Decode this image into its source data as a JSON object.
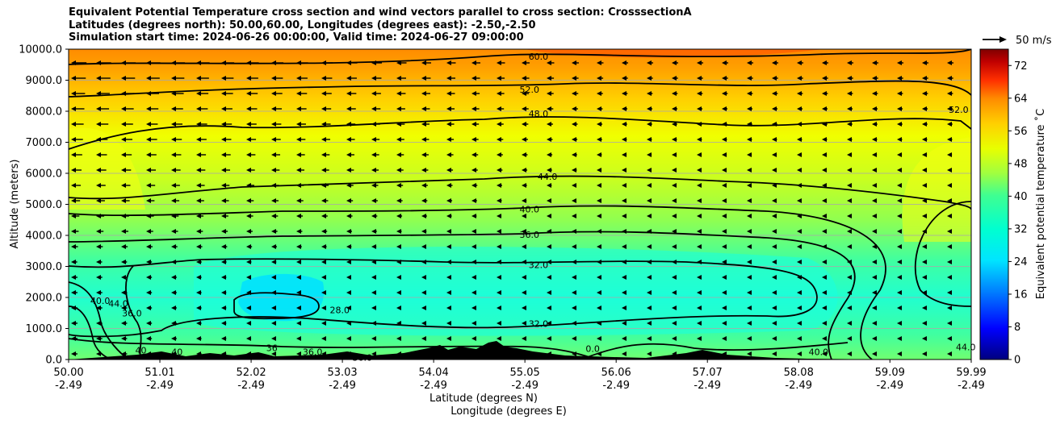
{
  "title_lines": [
    "Equivalent Potential Temperature cross section and wind vectors parallel to cross section: CrosssectionA",
    "Latitudes (degrees north): 50.00,60.00, Longitudes (degrees east): -2.50,-2.50",
    "Simulation start time: 2024-06-26 00:00:00, Valid time: 2024-06-27 09:00:00"
  ],
  "chart_data": {
    "type": "heatmap",
    "title": "Equivalent Potential Temperature cross section and wind vectors parallel to cross section: CrosssectionA",
    "ylabel": "Altitude (meters)",
    "xlabel": "Latitude (degrees N)",
    "xlabel2": "Longitude (degrees E)",
    "ylim": [
      0,
      10000
    ],
    "yticks": [
      "0.0",
      "1000.0",
      "2000.0",
      "3000.0",
      "4000.0",
      "5000.0",
      "6000.0",
      "7000.0",
      "8000.0",
      "9000.0",
      "10000.0"
    ],
    "ytick_values": [
      0,
      1000,
      2000,
      3000,
      4000,
      5000,
      6000,
      7000,
      8000,
      9000,
      10000
    ],
    "xlim": [
      50.0,
      59.99
    ],
    "xticks_lat": [
      "50.00",
      "51.01",
      "52.02",
      "53.03",
      "54.04",
      "55.05",
      "56.06",
      "57.07",
      "58.08",
      "59.09",
      "59.99"
    ],
    "xticks_lon": [
      "-2.49",
      "-2.49",
      "-2.49",
      "-2.49",
      "-2.49",
      "-2.49",
      "-2.49",
      "-2.49",
      "-2.49",
      "-2.49",
      "-2.49"
    ],
    "xtick_values": [
      50.0,
      51.01,
      52.02,
      53.03,
      54.04,
      55.05,
      56.06,
      57.07,
      58.08,
      59.09,
      59.99
    ],
    "colorbar": {
      "label": "Equivalent potential temperature ˚C",
      "range": [
        0,
        76
      ],
      "ticks": [
        "0",
        "8",
        "16",
        "24",
        "32",
        "40",
        "48",
        "56",
        "64",
        "72"
      ],
      "tick_values": [
        0,
        8,
        16,
        24,
        32,
        40,
        48,
        56,
        64,
        72
      ],
      "colors": [
        "#00007f",
        "#0000ff",
        "#0080ff",
        "#00e5ff",
        "#00ffd0",
        "#40ff90",
        "#a0ff40",
        "#e8ff00",
        "#ffd000",
        "#ff8c00",
        "#ff3000",
        "#c00000",
        "#7f0000"
      ]
    },
    "contour_labels": [
      {
        "text": "60.0",
        "x": 55.2,
        "y": 9760
      },
      {
        "text": "52.0",
        "x": 55.1,
        "y": 8700
      },
      {
        "text": "48.0",
        "x": 55.2,
        "y": 7920
      },
      {
        "text": "52.0",
        "x": 59.85,
        "y": 8050
      },
      {
        "text": "44.0",
        "x": 55.3,
        "y": 5900
      },
      {
        "text": "40.0",
        "x": 55.1,
        "y": 4850
      },
      {
        "text": "36.0",
        "x": 55.1,
        "y": 4030
      },
      {
        "text": "32.0",
        "x": 55.2,
        "y": 3050
      },
      {
        "text": "28.0",
        "x": 53.0,
        "y": 1600
      },
      {
        "text": "32.0",
        "x": 55.2,
        "y": 1150
      },
      {
        "text": "36.0",
        "x": 50.7,
        "y": 1500
      },
      {
        "text": "40.0",
        "x": 50.35,
        "y": 1900
      },
      {
        "text": "44.0",
        "x": 50.55,
        "y": 1800
      },
      {
        "text": "40",
        "x": 50.8,
        "y": 300
      },
      {
        "text": "40",
        "x": 51.2,
        "y": 250
      },
      {
        "text": "36",
        "x": 52.25,
        "y": 380
      },
      {
        "text": "36.0",
        "x": 52.7,
        "y": 250
      },
      {
        "text": "36.0",
        "x": 53.25,
        "y": 60
      },
      {
        "text": "0.0",
        "x": 55.8,
        "y": 350
      },
      {
        "text": "40.0",
        "x": 58.3,
        "y": 250
      },
      {
        "text": "44.0",
        "x": 59.93,
        "y": 400
      }
    ],
    "wind_reference": "50 m/s"
  }
}
